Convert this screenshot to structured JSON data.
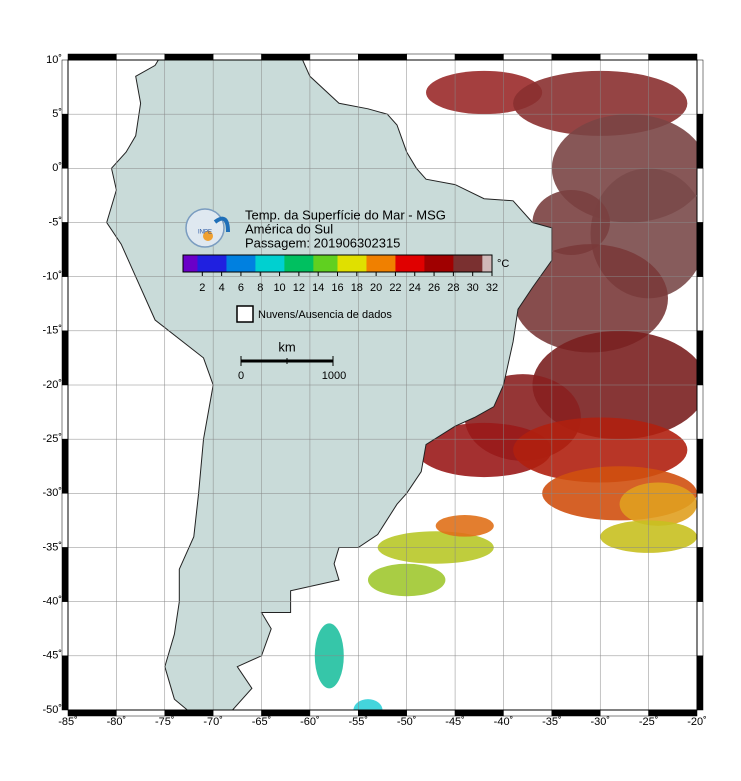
{
  "map": {
    "title": "Temp. da Superfície do Mar - MSG",
    "region": "América do Sul",
    "pass": "Passagem: 201906302315",
    "colorbar": {
      "ticks": [
        2,
        4,
        6,
        8,
        10,
        12,
        14,
        16,
        18,
        20,
        22,
        24,
        26,
        28,
        30,
        32
      ],
      "unit": "°C"
    },
    "legend": "Nuvens/Ausencia de dados",
    "scale": {
      "unit": "km",
      "start": "0",
      "end": "1000"
    },
    "lon_ticks": [
      "-85˚",
      "-80˚",
      "-75˚",
      "-70˚",
      "-65˚",
      "-60˚",
      "-55˚",
      "-50˚",
      "-45˚",
      "-40˚",
      "-35˚",
      "-30˚",
      "-25˚",
      "-20˚"
    ],
    "lat_ticks": [
      "10˚",
      "5˚",
      "0˚",
      "-5˚",
      "-10˚",
      "-15˚",
      "-20˚",
      "-25˚",
      "-30˚",
      "-35˚",
      "-40˚",
      "-45˚",
      "-50˚"
    ]
  }
}
